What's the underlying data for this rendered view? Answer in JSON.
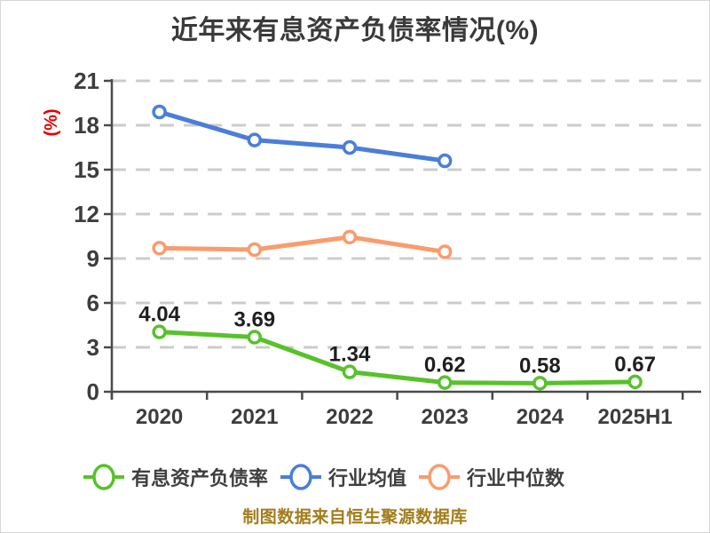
{
  "title": "近年来有息资产负债率情况(%)",
  "footer": "制图数据来自恒生聚源数据库",
  "colors": {
    "background": "#ffffff",
    "title_text": "#3a3a3a",
    "tick_text": "#3d3d3d",
    "point_label_text": "#1f1f1f",
    "axis_line": "#4a4a4a",
    "grid_line": "#cccccc",
    "y_unit_label": "#e60000",
    "marker_fill": "#ffffff",
    "footer_text": "#a37c1b",
    "series_green": "#57c22a",
    "series_blue": "#4a7ed9",
    "series_orange": "#f99c6e"
  },
  "chart_data": {
    "type": "line",
    "title": "近年来有息资产负债率情况(%)",
    "ylabel": "(%)",
    "xlabel": "",
    "categories": [
      "2020",
      "2021",
      "2022",
      "2023",
      "2024",
      "2025H1"
    ],
    "ylim": [
      0,
      21
    ],
    "yticks": [
      0,
      3,
      6,
      9,
      12,
      15,
      18,
      21
    ],
    "grid": "horizontal-dashed",
    "legend_position": "bottom",
    "footer": "制图数据来自恒生聚源数据库",
    "series": [
      {
        "name": "有息资产负债率",
        "slug": "interest-bearing-debt-ratio",
        "color": "#57c22a",
        "values": [
          4.04,
          3.69,
          1.34,
          0.62,
          0.58,
          0.67
        ],
        "point_labels": [
          "4.04",
          "3.69",
          "1.34",
          "0.62",
          "0.58",
          "0.67"
        ]
      },
      {
        "name": "行业均值",
        "slug": "industry-average",
        "color": "#4a7ed9",
        "values": [
          18.9,
          17.0,
          16.5,
          15.6
        ],
        "point_labels": []
      },
      {
        "name": "行业中位数",
        "slug": "industry-median",
        "color": "#f99c6e",
        "values": [
          9.7,
          9.6,
          10.45,
          9.45
        ],
        "point_labels": []
      }
    ]
  }
}
